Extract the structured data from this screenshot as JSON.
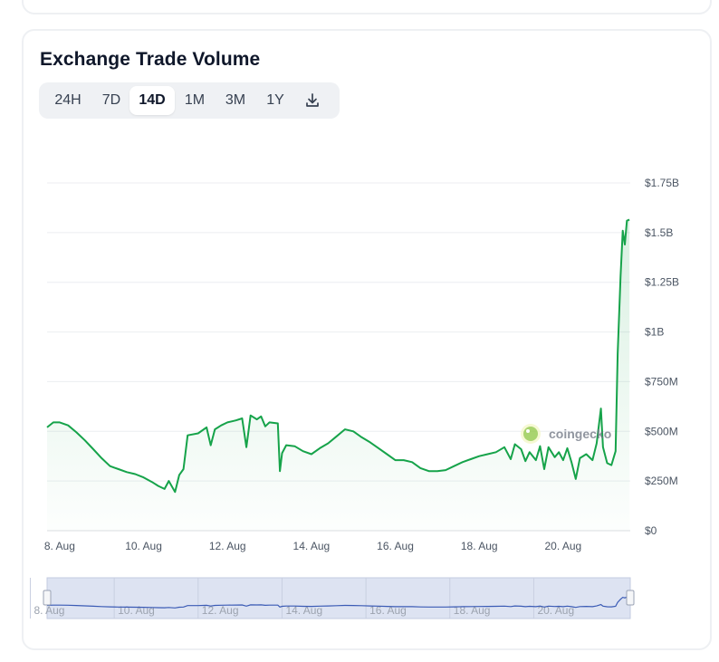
{
  "widget": {
    "title": "Exchange Trade Volume",
    "tabs": [
      {
        "label": "24H",
        "active": false
      },
      {
        "label": "7D",
        "active": false
      },
      {
        "label": "14D",
        "active": true
      },
      {
        "label": "1M",
        "active": false
      },
      {
        "label": "3M",
        "active": false
      },
      {
        "label": "1Y",
        "active": false
      }
    ],
    "download_icon": "download-icon",
    "watermark": "coingecko"
  },
  "colors": {
    "line": "#16a34a",
    "area_top": "#16a34a",
    "navigator_line": "#3b5bb5",
    "navigator_fill": "#dde3f2",
    "grid": "#eceef1",
    "axis_text": "#4b5563"
  },
  "chart_data": {
    "type": "area",
    "title": "Exchange Trade Volume",
    "y_unit": "USD",
    "ylim": [
      0,
      1750000000
    ],
    "y_tick_values": [
      0,
      250000000,
      500000000,
      750000000,
      1000000000,
      1250000000,
      1500000000,
      1750000000
    ],
    "y_tick_labels": [
      "$0",
      "$250M",
      "$500M",
      "$750M",
      "$1B",
      "$1.25B",
      "$1.5B",
      "$1.75B"
    ],
    "x_tick_labels": [
      "8. Aug",
      "10. Aug",
      "12. Aug",
      "14. Aug",
      "16. Aug",
      "18. Aug",
      "20. Aug"
    ],
    "x_range_days": [
      7.7,
      21.6
    ],
    "grid": true,
    "legend": "none",
    "series": [
      {
        "points": [
          [
            7.7,
            520000000
          ],
          [
            7.85,
            545000000
          ],
          [
            8.0,
            545000000
          ],
          [
            8.2,
            530000000
          ],
          [
            8.4,
            495000000
          ],
          [
            8.6,
            455000000
          ],
          [
            8.8,
            410000000
          ],
          [
            9.0,
            365000000
          ],
          [
            9.2,
            325000000
          ],
          [
            9.4,
            310000000
          ],
          [
            9.6,
            295000000
          ],
          [
            9.8,
            285000000
          ],
          [
            10.0,
            268000000
          ],
          [
            10.2,
            245000000
          ],
          [
            10.35,
            225000000
          ],
          [
            10.5,
            210000000
          ],
          [
            10.6,
            250000000
          ],
          [
            10.75,
            195000000
          ],
          [
            10.85,
            280000000
          ],
          [
            10.95,
            310000000
          ],
          [
            11.05,
            480000000
          ],
          [
            11.3,
            490000000
          ],
          [
            11.5,
            520000000
          ],
          [
            11.6,
            430000000
          ],
          [
            11.7,
            510000000
          ],
          [
            11.85,
            530000000
          ],
          [
            12.0,
            545000000
          ],
          [
            12.2,
            555000000
          ],
          [
            12.35,
            565000000
          ],
          [
            12.45,
            420000000
          ],
          [
            12.55,
            580000000
          ],
          [
            12.7,
            560000000
          ],
          [
            12.8,
            575000000
          ],
          [
            12.9,
            525000000
          ],
          [
            13.0,
            545000000
          ],
          [
            13.2,
            540000000
          ],
          [
            13.25,
            300000000
          ],
          [
            13.3,
            390000000
          ],
          [
            13.4,
            430000000
          ],
          [
            13.6,
            425000000
          ],
          [
            13.8,
            400000000
          ],
          [
            14.0,
            385000000
          ],
          [
            14.2,
            415000000
          ],
          [
            14.4,
            440000000
          ],
          [
            14.6,
            475000000
          ],
          [
            14.8,
            510000000
          ],
          [
            15.0,
            500000000
          ],
          [
            15.2,
            470000000
          ],
          [
            15.4,
            445000000
          ],
          [
            15.6,
            415000000
          ],
          [
            15.8,
            385000000
          ],
          [
            16.0,
            355000000
          ],
          [
            16.2,
            355000000
          ],
          [
            16.4,
            345000000
          ],
          [
            16.6,
            315000000
          ],
          [
            16.8,
            300000000
          ],
          [
            17.0,
            300000000
          ],
          [
            17.2,
            305000000
          ],
          [
            17.4,
            325000000
          ],
          [
            17.6,
            345000000
          ],
          [
            17.8,
            360000000
          ],
          [
            18.0,
            375000000
          ],
          [
            18.2,
            385000000
          ],
          [
            18.4,
            395000000
          ],
          [
            18.6,
            420000000
          ],
          [
            18.75,
            360000000
          ],
          [
            18.85,
            435000000
          ],
          [
            19.0,
            410000000
          ],
          [
            19.1,
            350000000
          ],
          [
            19.2,
            395000000
          ],
          [
            19.35,
            355000000
          ],
          [
            19.45,
            425000000
          ],
          [
            19.55,
            310000000
          ],
          [
            19.65,
            420000000
          ],
          [
            19.8,
            370000000
          ],
          [
            19.9,
            395000000
          ],
          [
            20.0,
            355000000
          ],
          [
            20.1,
            415000000
          ],
          [
            20.2,
            345000000
          ],
          [
            20.3,
            260000000
          ],
          [
            20.4,
            365000000
          ],
          [
            20.55,
            385000000
          ],
          [
            20.7,
            355000000
          ],
          [
            20.8,
            440000000
          ],
          [
            20.9,
            615000000
          ],
          [
            20.95,
            420000000
          ],
          [
            21.05,
            340000000
          ],
          [
            21.15,
            330000000
          ],
          [
            21.25,
            400000000
          ],
          [
            21.3,
            890000000
          ],
          [
            21.37,
            1280000000
          ],
          [
            21.42,
            1510000000
          ],
          [
            21.47,
            1440000000
          ],
          [
            21.52,
            1560000000
          ],
          [
            21.58,
            1565000000
          ]
        ]
      }
    ],
    "navigator": {
      "x_tick_labels": [
        "8. Aug",
        "10. Aug",
        "12. Aug",
        "14. Aug",
        "16. Aug",
        "18. Aug",
        "20. Aug"
      ]
    }
  }
}
